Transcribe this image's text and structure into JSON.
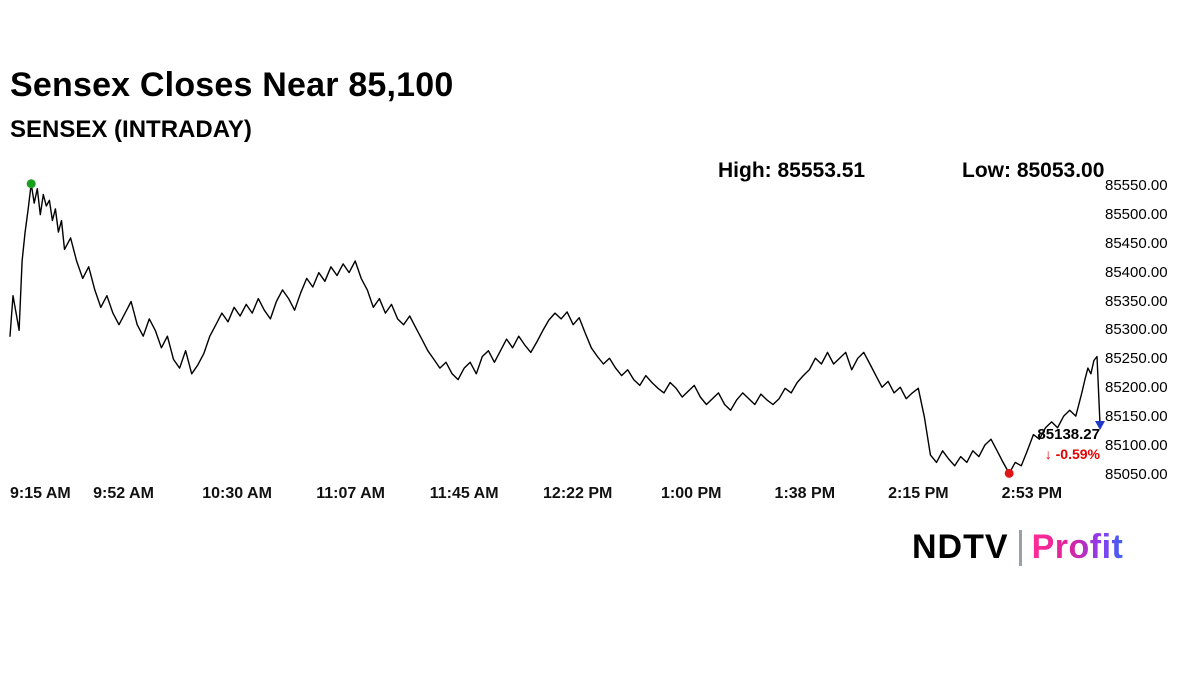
{
  "title": "Sensex Closes Near 85,100",
  "subtitle": "SENSEX (INTRADAY)",
  "stats": {
    "high_text": "High: 85553.51",
    "low_text": "Low: 85053.00"
  },
  "last": {
    "price": "85138.27",
    "arrow": "↓",
    "change_pct": "-0.59%"
  },
  "brand": {
    "ndtv": "NDTV",
    "profit": "Profit"
  },
  "colors": {
    "line": "#000000",
    "high_marker": "#18a01c",
    "low_marker": "#e01616",
    "close_marker": "#2038c8",
    "change_text": "#e60000",
    "profit_brand": "#e0219a"
  },
  "chart_data": {
    "type": "line",
    "title": "SENSEX (INTRADAY)",
    "x_unit": "minutes since 9:15 AM",
    "xlim": [
      0,
      360
    ],
    "ylim": [
      85045,
      85560
    ],
    "grid": false,
    "legend": "none",
    "high": 85553.51,
    "low": 85053.0,
    "close": 85138.27,
    "change_pct": -0.59,
    "x_ticks": [
      {
        "label": "9:15 AM",
        "x": 0
      },
      {
        "label": "9:52 AM",
        "x": 37.5
      },
      {
        "label": "10:30 AM",
        "x": 75
      },
      {
        "label": "11:07 AM",
        "x": 112.5
      },
      {
        "label": "11:45 AM",
        "x": 150
      },
      {
        "label": "12:22 PM",
        "x": 187.5
      },
      {
        "label": "1:00 PM",
        "x": 225
      },
      {
        "label": "1:38 PM",
        "x": 262.5
      },
      {
        "label": "2:15 PM",
        "x": 300
      },
      {
        "label": "2:53 PM",
        "x": 337.5
      }
    ],
    "y_ticks": [
      {
        "label": "85550.00",
        "value": 85550
      },
      {
        "label": "85500.00",
        "value": 85500
      },
      {
        "label": "85450.00",
        "value": 85450
      },
      {
        "label": "85400.00",
        "value": 85400
      },
      {
        "label": "85350.00",
        "value": 85350
      },
      {
        "label": "85300.00",
        "value": 85300
      },
      {
        "label": "85250.00",
        "value": 85250
      },
      {
        "label": "85200.00",
        "value": 85200
      },
      {
        "label": "85150.00",
        "value": 85150
      },
      {
        "label": "85100.00",
        "value": 85100
      },
      {
        "label": "85050.00",
        "value": 85050
      }
    ],
    "markers": {
      "high": {
        "x": 7,
        "y": 85553.51,
        "color": "#18a01c"
      },
      "low": {
        "x": 330,
        "y": 85053.0,
        "color": "#e01616"
      },
      "close": {
        "x": 360,
        "y": 85138.27,
        "color": "#2038c8"
      }
    },
    "points": [
      [
        0,
        85290
      ],
      [
        1,
        85360
      ],
      [
        2,
        85330
      ],
      [
        3,
        85300
      ],
      [
        4,
        85420
      ],
      [
        5,
        85470
      ],
      [
        6,
        85510
      ],
      [
        7,
        85553.51
      ],
      [
        8,
        85520
      ],
      [
        9,
        85545
      ],
      [
        10,
        85500
      ],
      [
        11,
        85535
      ],
      [
        12,
        85515
      ],
      [
        13,
        85525
      ],
      [
        14,
        85490
      ],
      [
        15,
        85510
      ],
      [
        16,
        85470
      ],
      [
        17,
        85490
      ],
      [
        18,
        85440
      ],
      [
        20,
        85460
      ],
      [
        22,
        85420
      ],
      [
        24,
        85390
      ],
      [
        26,
        85410
      ],
      [
        28,
        85370
      ],
      [
        30,
        85340
      ],
      [
        32,
        85360
      ],
      [
        34,
        85330
      ],
      [
        36,
        85310
      ],
      [
        38,
        85330
      ],
      [
        40,
        85350
      ],
      [
        42,
        85310
      ],
      [
        44,
        85290
      ],
      [
        46,
        85320
      ],
      [
        48,
        85300
      ],
      [
        50,
        85270
      ],
      [
        52,
        85290
      ],
      [
        54,
        85250
      ],
      [
        56,
        85235
      ],
      [
        58,
        85265
      ],
      [
        60,
        85225
      ],
      [
        62,
        85240
      ],
      [
        64,
        85260
      ],
      [
        66,
        85290
      ],
      [
        68,
        85310
      ],
      [
        70,
        85330
      ],
      [
        72,
        85315
      ],
      [
        74,
        85340
      ],
      [
        76,
        85325
      ],
      [
        78,
        85345
      ],
      [
        80,
        85330
      ],
      [
        82,
        85355
      ],
      [
        84,
        85335
      ],
      [
        86,
        85320
      ],
      [
        88,
        85350
      ],
      [
        90,
        85370
      ],
      [
        92,
        85355
      ],
      [
        94,
        85335
      ],
      [
        96,
        85365
      ],
      [
        98,
        85390
      ],
      [
        100,
        85375
      ],
      [
        102,
        85400
      ],
      [
        104,
        85385
      ],
      [
        106,
        85410
      ],
      [
        108,
        85395
      ],
      [
        110,
        85415
      ],
      [
        112,
        85400
      ],
      [
        114,
        85420
      ],
      [
        116,
        85390
      ],
      [
        118,
        85370
      ],
      [
        120,
        85340
      ],
      [
        122,
        85355
      ],
      [
        124,
        85330
      ],
      [
        126,
        85345
      ],
      [
        128,
        85320
      ],
      [
        130,
        85310
      ],
      [
        132,
        85325
      ],
      [
        134,
        85305
      ],
      [
        136,
        85285
      ],
      [
        138,
        85265
      ],
      [
        140,
        85250
      ],
      [
        142,
        85235
      ],
      [
        144,
        85245
      ],
      [
        146,
        85225
      ],
      [
        148,
        85215
      ],
      [
        150,
        85235
      ],
      [
        152,
        85245
      ],
      [
        154,
        85225
      ],
      [
        156,
        85255
      ],
      [
        158,
        85265
      ],
      [
        160,
        85245
      ],
      [
        162,
        85265
      ],
      [
        164,
        85285
      ],
      [
        166,
        85270
      ],
      [
        168,
        85290
      ],
      [
        170,
        85275
      ],
      [
        172,
        85262
      ],
      [
        174,
        85280
      ],
      [
        176,
        85300
      ],
      [
        178,
        85318
      ],
      [
        180,
        85330
      ],
      [
        182,
        85320
      ],
      [
        184,
        85332
      ],
      [
        186,
        85310
      ],
      [
        188,
        85322
      ],
      [
        190,
        85295
      ],
      [
        192,
        85270
      ],
      [
        194,
        85255
      ],
      [
        196,
        85242
      ],
      [
        198,
        85252
      ],
      [
        200,
        85235
      ],
      [
        202,
        85222
      ],
      [
        204,
        85232
      ],
      [
        206,
        85215
      ],
      [
        208,
        85205
      ],
      [
        210,
        85222
      ],
      [
        212,
        85210
      ],
      [
        214,
        85200
      ],
      [
        216,
        85192
      ],
      [
        218,
        85210
      ],
      [
        220,
        85200
      ],
      [
        222,
        85185
      ],
      [
        224,
        85195
      ],
      [
        226,
        85205
      ],
      [
        228,
        85185
      ],
      [
        230,
        85172
      ],
      [
        232,
        85182
      ],
      [
        234,
        85192
      ],
      [
        236,
        85172
      ],
      [
        238,
        85162
      ],
      [
        240,
        85180
      ],
      [
        242,
        85192
      ],
      [
        244,
        85182
      ],
      [
        246,
        85172
      ],
      [
        248,
        85190
      ],
      [
        250,
        85180
      ],
      [
        252,
        85172
      ],
      [
        254,
        85182
      ],
      [
        256,
        85200
      ],
      [
        258,
        85192
      ],
      [
        260,
        85210
      ],
      [
        262,
        85222
      ],
      [
        264,
        85232
      ],
      [
        266,
        85252
      ],
      [
        268,
        85242
      ],
      [
        270,
        85262
      ],
      [
        272,
        85242
      ],
      [
        274,
        85252
      ],
      [
        276,
        85262
      ],
      [
        278,
        85232
      ],
      [
        280,
        85252
      ],
      [
        282,
        85262
      ],
      [
        284,
        85242
      ],
      [
        286,
        85222
      ],
      [
        288,
        85202
      ],
      [
        290,
        85212
      ],
      [
        292,
        85192
      ],
      [
        294,
        85202
      ],
      [
        296,
        85182
      ],
      [
        298,
        85192
      ],
      [
        300,
        85200
      ],
      [
        302,
        85150
      ],
      [
        304,
        85085
      ],
      [
        306,
        85072
      ],
      [
        308,
        85092
      ],
      [
        310,
        85078
      ],
      [
        312,
        85066
      ],
      [
        314,
        85082
      ],
      [
        316,
        85072
      ],
      [
        318,
        85092
      ],
      [
        320,
        85082
      ],
      [
        322,
        85102
      ],
      [
        324,
        85112
      ],
      [
        326,
        85092
      ],
      [
        328,
        85072
      ],
      [
        330,
        85053
      ],
      [
        332,
        85072
      ],
      [
        334,
        85066
      ],
      [
        336,
        85092
      ],
      [
        338,
        85120
      ],
      [
        340,
        85112
      ],
      [
        342,
        85132
      ],
      [
        344,
        85142
      ],
      [
        346,
        85132
      ],
      [
        348,
        85152
      ],
      [
        350,
        85162
      ],
      [
        352,
        85152
      ],
      [
        354,
        85192
      ],
      [
        355,
        85215
      ],
      [
        356,
        85235
      ],
      [
        357,
        85225
      ],
      [
        358,
        85248
      ],
      [
        359,
        85255
      ],
      [
        360,
        85138.27
      ]
    ]
  }
}
